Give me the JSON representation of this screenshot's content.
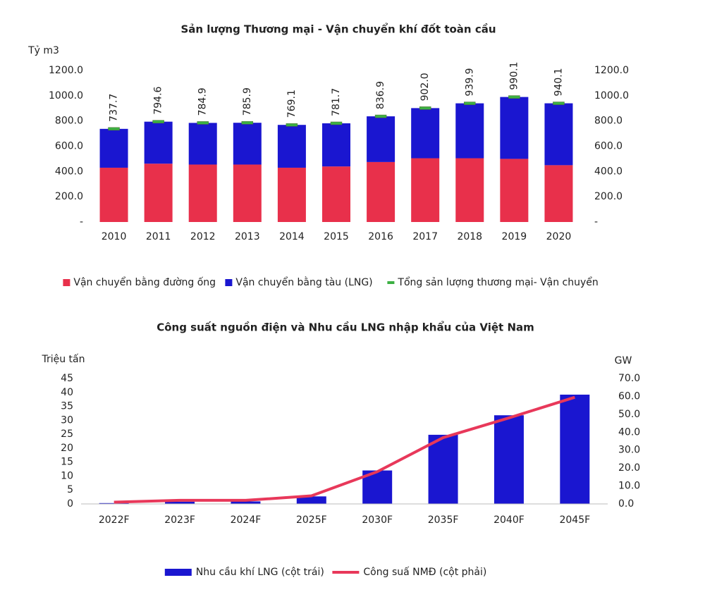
{
  "chart_data": [
    {
      "type": "stacked_bar",
      "title": "Sản lượng Thương mại - Vận chuyển khí đốt toàn cầu",
      "y_label": "Tỷ m3",
      "categories": [
        "2010",
        "2011",
        "2012",
        "2013",
        "2014",
        "2015",
        "2016",
        "2017",
        "2018",
        "2019",
        "2020"
      ],
      "series": [
        {
          "name": "Vận chuyển bằng đường ống",
          "color": "#e8304b",
          "values": [
            430,
            462,
            455,
            455,
            430,
            440,
            475,
            505,
            505,
            500,
            450
          ]
        },
        {
          "name": "Vận chuyển bằng tàu (LNG)",
          "color": "#1a16d0",
          "values": [
            307.7,
            332.6,
            329.9,
            330.9,
            339.1,
            341.7,
            361.9,
            397,
            434.9,
            490.1,
            490.1
          ]
        },
        {
          "name": "Tổng sản lượng thương mại- Vận chuyển",
          "color": "#3cb043",
          "marker": true,
          "values": [
            737.7,
            794.6,
            784.9,
            785.9,
            769.1,
            781.7,
            836.9,
            902,
            939.9,
            990.1,
            940.1
          ],
          "value_labels": [
            "737.7",
            "794.6",
            "784.9",
            "785.9",
            "769.1",
            "781.7",
            "836.9",
            "902.0",
            "939.9",
            "990.1",
            "940.1"
          ]
        }
      ],
      "ylim": [
        0,
        1200
      ],
      "yticks": [
        {
          "value": 0,
          "label": "-"
        },
        {
          "value": 200,
          "label": "200.0"
        },
        {
          "value": 400,
          "label": "400.0"
        },
        {
          "value": 600,
          "label": "600.0"
        },
        {
          "value": 800,
          "label": "800.0"
        },
        {
          "value": 1000,
          "label": "1000.0"
        },
        {
          "value": 1200,
          "label": "1200.0"
        }
      ],
      "y2lim": [
        0,
        1200
      ],
      "y2ticks": [
        {
          "value": 0,
          "label": "-"
        },
        {
          "value": 200,
          "label": "200.0"
        },
        {
          "value": 400,
          "label": "400.0"
        },
        {
          "value": 600,
          "label": "600.0"
        },
        {
          "value": 800,
          "label": "800.0"
        },
        {
          "value": 1000,
          "label": "1000.0"
        },
        {
          "value": 1200,
          "label": "1200.0"
        }
      ],
      "legend": "bottom"
    },
    {
      "type": "bar_line",
      "title": "Công suất nguồn điện và Nhu cầu LNG nhập khẩu của Việt Nam",
      "y_label": "Triệu tấn",
      "y2_label": "GW",
      "categories": [
        "2022F",
        "2023F",
        "2024F",
        "2025F",
        "2030F",
        "2035F",
        "2040F",
        "2045F"
      ],
      "series": [
        {
          "name": "Nhu cầu khí LNG (cột trái)",
          "color": "#1a16d0",
          "values": [
            0.3,
            0.8,
            0.9,
            2.7,
            12,
            24.8,
            31.8,
            39.2
          ]
        },
        {
          "name": "Công suấ NMĐ (cột phải)",
          "color": "#e8385a",
          "axis": "y2",
          "values": [
            1,
            2,
            2,
            4.5,
            18,
            37,
            48,
            59.5
          ]
        }
      ],
      "ylim": [
        0,
        45
      ],
      "yticks": [
        0,
        5,
        10,
        15,
        20,
        25,
        30,
        35,
        40,
        45
      ],
      "y2lim": [
        0,
        70
      ],
      "y2ticks": [
        {
          "value": 0,
          "label": "0.0"
        },
        {
          "value": 10,
          "label": "10.0"
        },
        {
          "value": 20,
          "label": "20.0"
        },
        {
          "value": 30,
          "label": "30.0"
        },
        {
          "value": 40,
          "label": "40.0"
        },
        {
          "value": 50,
          "label": "50.0"
        },
        {
          "value": 60,
          "label": "60.0"
        },
        {
          "value": 70,
          "label": "70.0"
        }
      ],
      "legend": "bottom"
    }
  ]
}
